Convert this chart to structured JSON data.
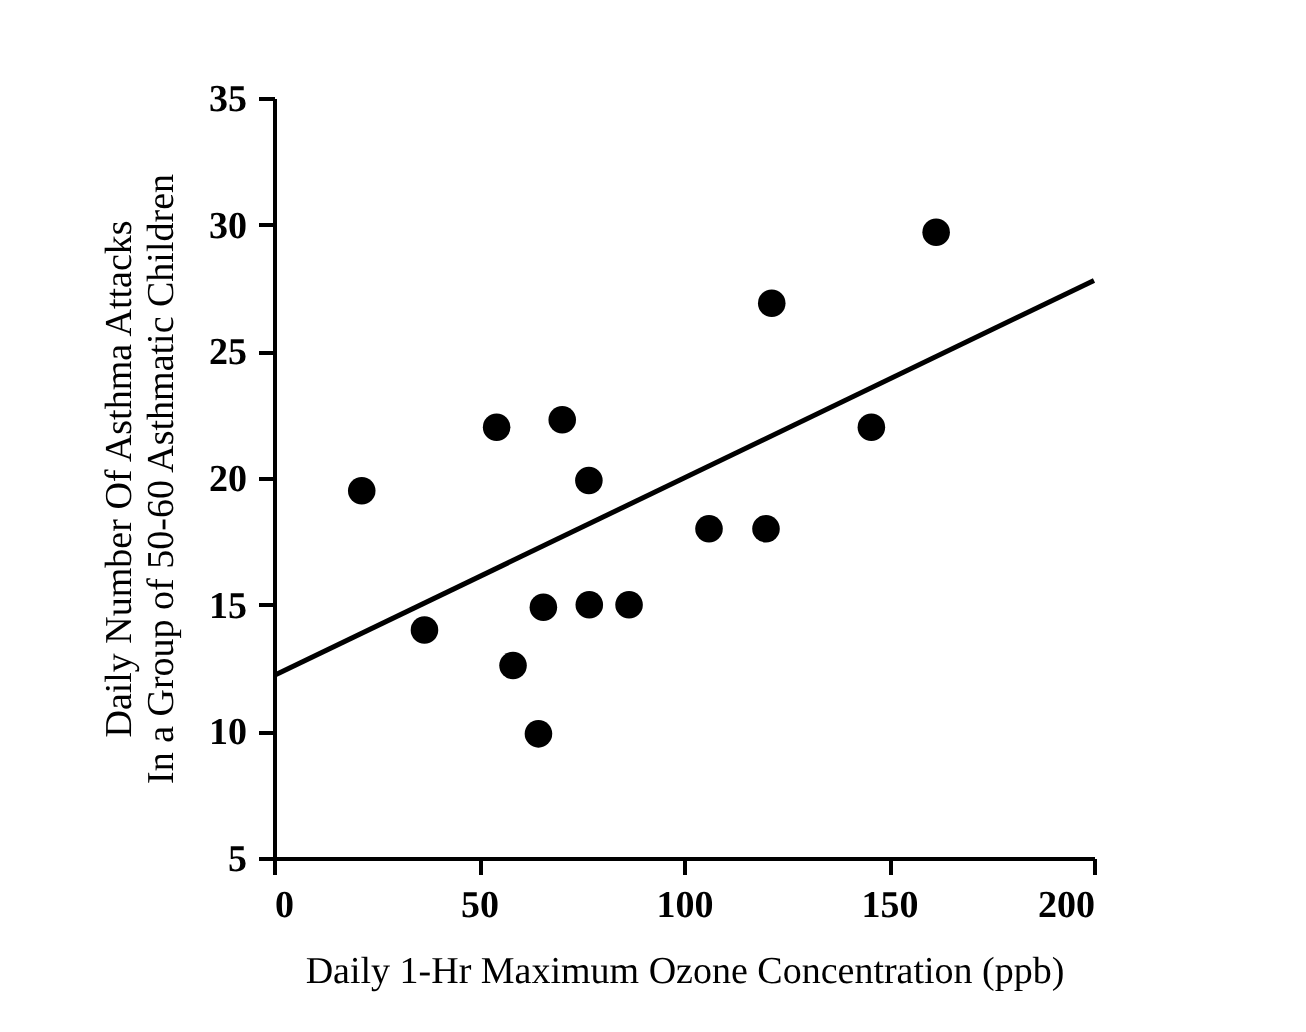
{
  "chart_data": {
    "type": "scatter",
    "xlabel": "Daily 1-Hr Maximum Ozone Concentration (ppb)",
    "ylabel": "Daily Number Of Asthma Attacks\nIn a Group of 50-60 Asthmatic Children",
    "xlim": [
      0,
      200
    ],
    "xticks": [
      0,
      50,
      100,
      150,
      200
    ],
    "ylim": [
      5,
      35
    ],
    "yticks": [
      5,
      10,
      15,
      20,
      25,
      30,
      35
    ],
    "grid": false,
    "series": [
      {
        "color": "#000000",
        "marker": "circle",
        "x": [
          21.4,
          36.7,
          54.3,
          70.3,
          76.8,
          58.3,
          64.5,
          65.7,
          76.9,
          86.6,
          106.1,
          120,
          121.4,
          145.7,
          161.5
        ],
        "values": [
          19.5,
          14.0,
          22.0,
          22.3,
          19.9,
          12.6,
          9.9,
          14.9,
          15.0,
          15.0,
          18.0,
          18.0,
          26.9,
          22.0,
          29.7
        ]
      },
      {
        "type": "line",
        "color": "#000000",
        "line_style": "solid",
        "x": [
          0,
          200
        ],
        "values": [
          12.2,
          27.8
        ]
      }
    ]
  }
}
